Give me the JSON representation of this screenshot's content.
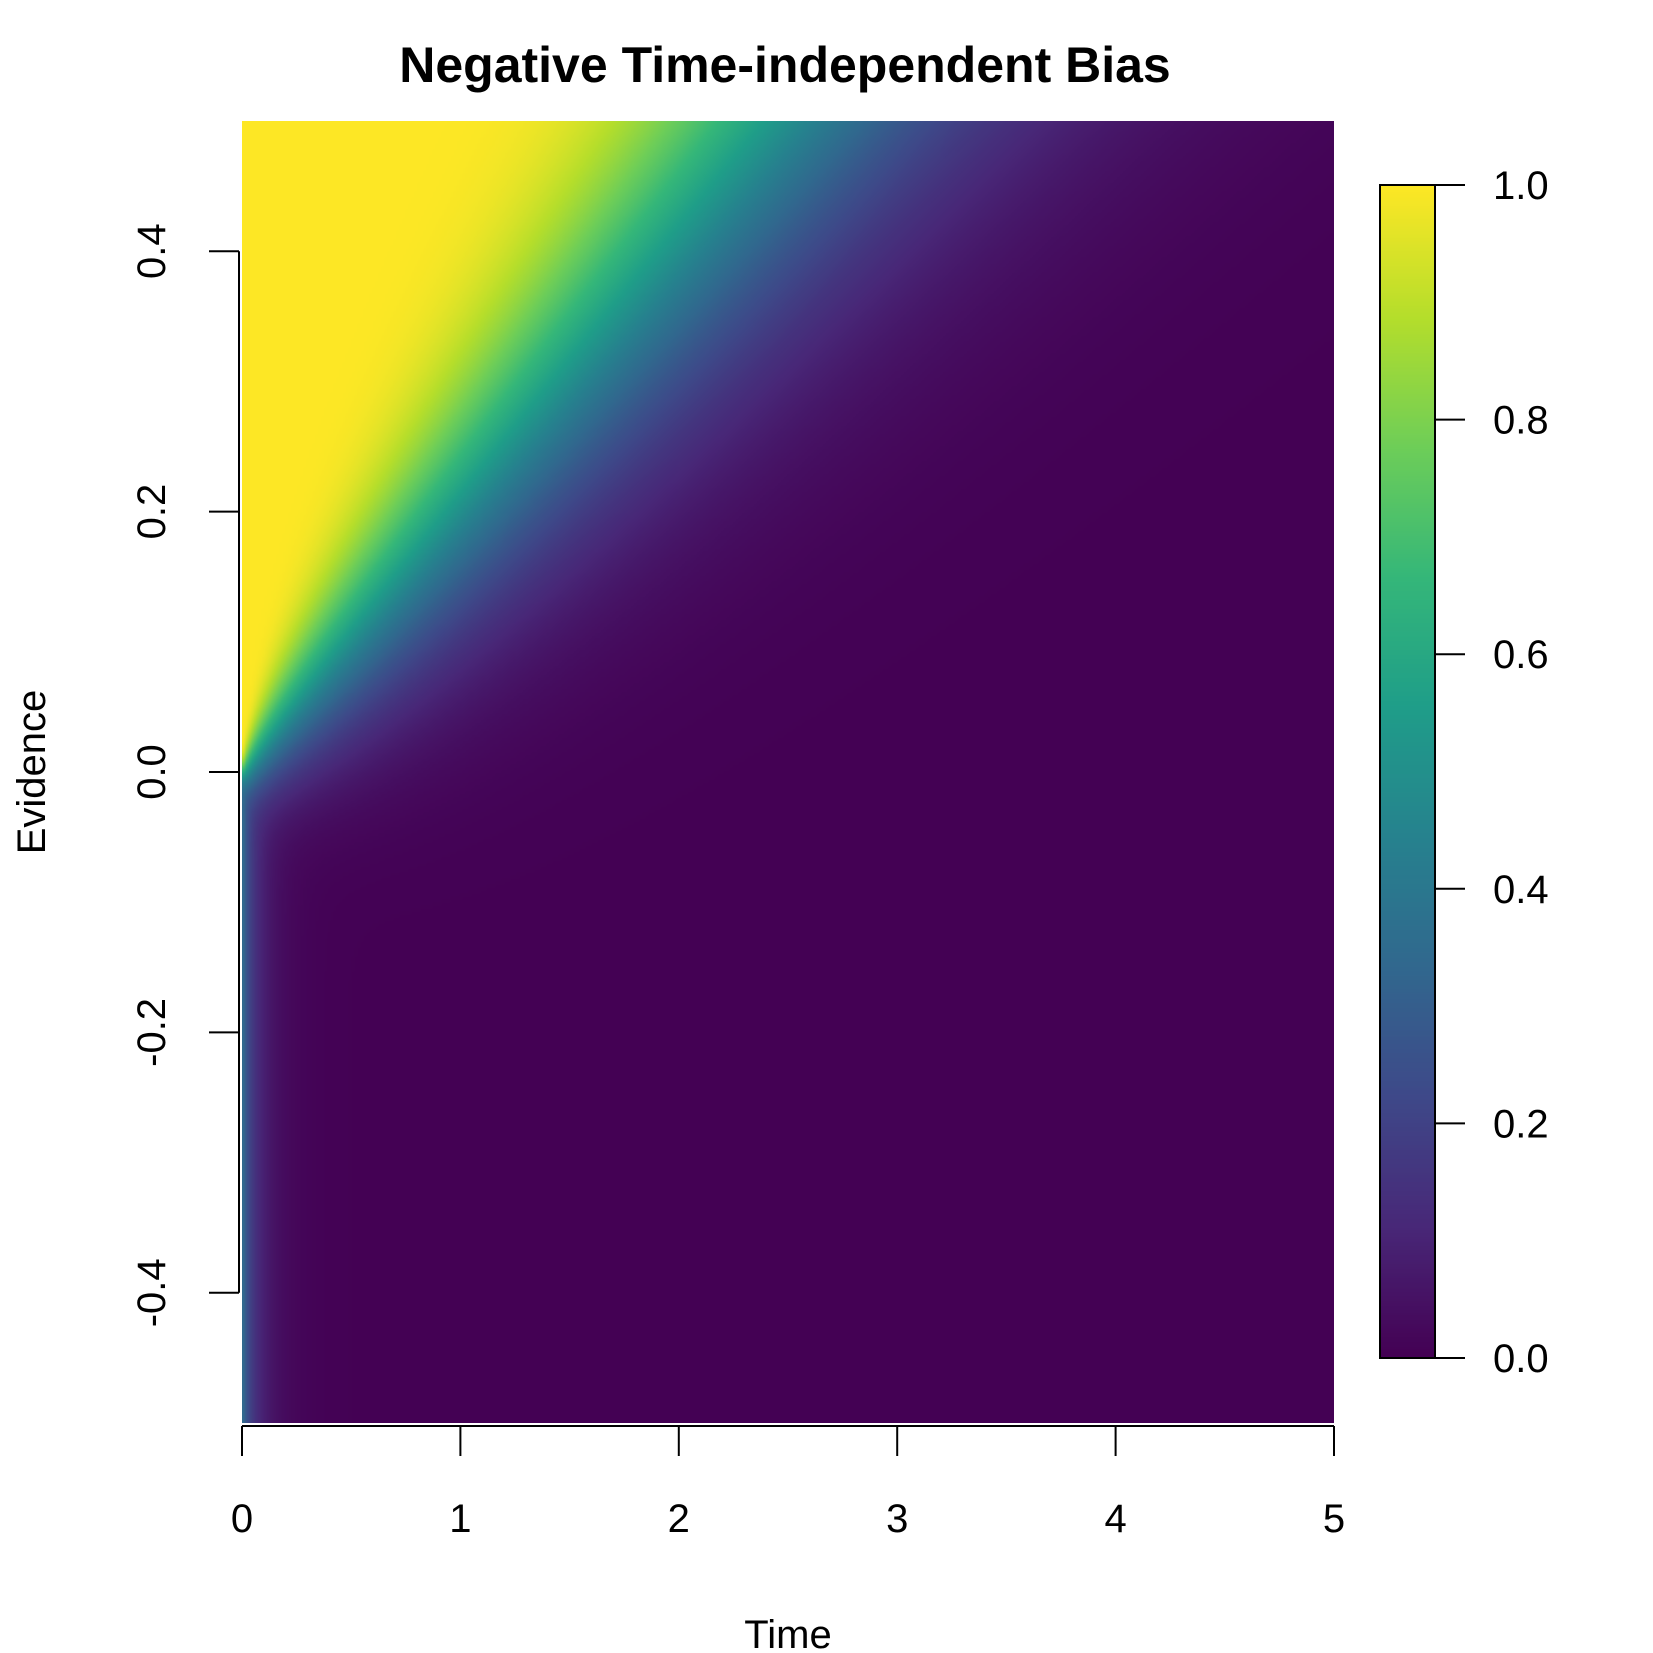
{
  "chart_data": {
    "type": "heatmap",
    "title": "Negative Time-independent Bias",
    "xlabel": "Time",
    "ylabel": "Evidence",
    "xlim": [
      0,
      5
    ],
    "ylim": [
      -0.5,
      0.5
    ],
    "x_ticks": [
      0,
      1,
      2,
      3,
      4,
      5
    ],
    "x_tick_labels": [
      "0",
      "1",
      "2",
      "3",
      "4",
      "5"
    ],
    "y_ticks": [
      -0.4,
      -0.2,
      0.0,
      0.2,
      0.4
    ],
    "y_tick_labels": [
      "-0.4",
      "-0.2",
      "0.0",
      "0.2",
      "0.4"
    ],
    "colorbar": {
      "range": [
        0.0,
        1.0
      ],
      "ticks": [
        0.0,
        0.2,
        0.4,
        0.6,
        0.8,
        1.0
      ],
      "tick_labels": [
        "0.0",
        "0.2",
        "0.4",
        "0.6",
        "0.8",
        "1.0"
      ],
      "colormap": "viridis",
      "colors": [
        "#440154",
        "#482878",
        "#3e4989",
        "#31688e",
        "#26828e",
        "#1f9e89",
        "#35b779",
        "#6ece58",
        "#b5de2b",
        "#fde725"
      ]
    },
    "grid": false,
    "legend": "colorbar-right"
  }
}
